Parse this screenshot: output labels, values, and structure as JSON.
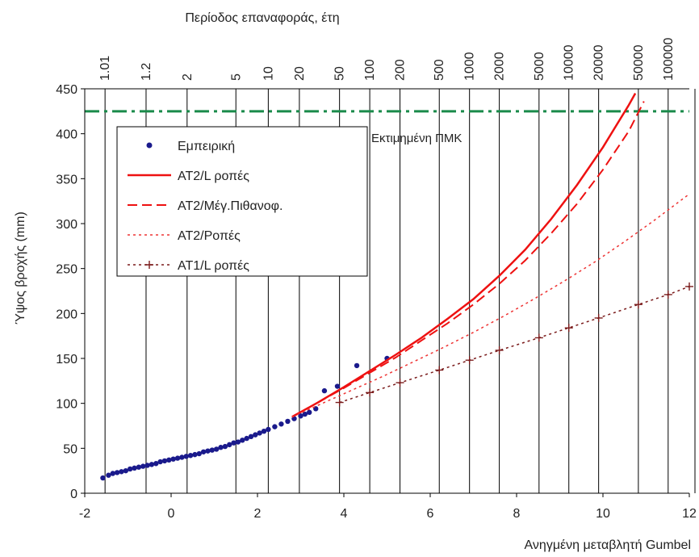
{
  "chart_data": {
    "type": "scatter",
    "title": "",
    "xlabel": "Ανηγμένη μεταβλητή Gumbel",
    "ylabel": "Ύψος βροχής (mm)",
    "top_axis_label": "Περίοδος επαναφοράς, έτη",
    "xlim": [
      -2,
      12
    ],
    "ylim": [
      0,
      450
    ],
    "x_ticks": [
      "-2",
      "0",
      "2",
      "4",
      "6",
      "8",
      "10",
      "12"
    ],
    "y_ticks": [
      "0",
      "50",
      "100",
      "150",
      "200",
      "250",
      "300",
      "350",
      "400",
      "450"
    ],
    "return_periods": [
      {
        "label": "1.01",
        "x": -1.53
      },
      {
        "label": "1.2",
        "x": -0.58
      },
      {
        "label": "2",
        "x": 0.37
      },
      {
        "label": "5",
        "x": 1.5
      },
      {
        "label": "10",
        "x": 2.25
      },
      {
        "label": "20",
        "x": 2.97
      },
      {
        "label": "50",
        "x": 3.9
      },
      {
        "label": "100",
        "x": 4.6
      },
      {
        "label": "200",
        "x": 5.3
      },
      {
        "label": "500",
        "x": 6.21
      },
      {
        "label": "1000",
        "x": 6.91
      },
      {
        "label": "2000",
        "x": 7.6
      },
      {
        "label": "5000",
        "x": 8.52
      },
      {
        "label": "10000",
        "x": 9.21
      },
      {
        "label": "20000",
        "x": 9.9
      },
      {
        "label": "50000",
        "x": 10.82
      },
      {
        "label": "100000",
        "x": 11.51
      }
    ],
    "pmp": {
      "label": "Εκτιμημένη ΠΜΚ",
      "value": 425,
      "color": "#1a8a4a"
    },
    "grid": "vertical lines at return periods",
    "legend_position": "upper-left",
    "series": [
      {
        "name": "Εμπειρική",
        "kind": "points",
        "color": "#1a1a8c",
        "x": [
          -1.58,
          -1.45,
          -1.35,
          -1.25,
          -1.15,
          -1.05,
          -0.95,
          -0.85,
          -0.75,
          -0.65,
          -0.55,
          -0.45,
          -0.35,
          -0.25,
          -0.15,
          -0.05,
          0.05,
          0.15,
          0.25,
          0.35,
          0.45,
          0.55,
          0.65,
          0.75,
          0.85,
          0.95,
          1.05,
          1.15,
          1.25,
          1.35,
          1.45,
          1.55,
          1.65,
          1.75,
          1.85,
          1.95,
          2.05,
          2.15,
          2.25,
          2.4,
          2.55,
          2.7,
          2.85,
          3.0,
          3.1,
          3.2,
          3.35,
          3.55,
          3.85,
          4.3,
          5.0
        ],
        "y": [
          17,
          20,
          22,
          23,
          24,
          25,
          27,
          28,
          29,
          30,
          31,
          32,
          33,
          35,
          36,
          37,
          38,
          39,
          40,
          41,
          42,
          43,
          44,
          46,
          47,
          48,
          49,
          51,
          52,
          54,
          56,
          57,
          59,
          61,
          63,
          65,
          67,
          69,
          71,
          74,
          77,
          80,
          83,
          86,
          88,
          90,
          94,
          114,
          119,
          142,
          150
        ]
      },
      {
        "name": "ΑΤ2/L ροπές",
        "kind": "line",
        "color": "#ee1111",
        "style": "solid",
        "x": [
          2.8,
          3.4,
          4,
          4.6,
          5.2,
          5.8,
          6.4,
          7,
          7.6,
          8.2,
          8.8,
          9.4,
          10,
          10.6,
          10.75
        ],
        "y": [
          85,
          101,
          118,
          136,
          154,
          173,
          194,
          216,
          242,
          271,
          305,
          343,
          385,
          432,
          445
        ]
      },
      {
        "name": "ΑΤ2/Μέγ.Πιθανοφ.",
        "kind": "line",
        "color": "#ee1111",
        "style": "dashed",
        "x": [
          2.8,
          3.4,
          4,
          4.6,
          5.2,
          5.8,
          6.4,
          7,
          7.6,
          8.2,
          8.8,
          9.4,
          10,
          10.6,
          10.95
        ],
        "y": [
          85,
          101,
          117,
          134,
          151,
          170,
          189,
          210,
          233,
          259,
          289,
          322,
          360,
          403,
          436
        ]
      },
      {
        "name": "ΑΤ2/Ροπές",
        "kind": "line",
        "color": "#ee3333",
        "style": "dotted",
        "x": [
          2.8,
          3.5,
          4.2,
          4.9,
          5.6,
          6.3,
          7,
          7.7,
          8.4,
          9.1,
          9.8,
          10.5,
          11.2,
          12
        ],
        "y": [
          85,
          100,
          115,
          130,
          146,
          162,
          179,
          197,
          216,
          236,
          257,
          280,
          304,
          333
        ]
      },
      {
        "name": "ΑΤ1/L ροπές",
        "kind": "line-markers",
        "color": "#7a1a1a",
        "style": "dotted",
        "x": [
          3.9,
          4.6,
          5.3,
          6.21,
          6.91,
          7.6,
          8.52,
          9.21,
          9.9,
          10.82,
          11.51,
          12
        ],
        "y": [
          101,
          112,
          123,
          137,
          148,
          159,
          173,
          184,
          195,
          210,
          221,
          230
        ]
      }
    ]
  }
}
